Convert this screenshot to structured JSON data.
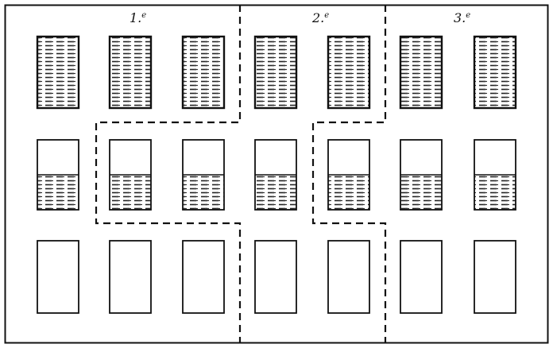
{
  "figure": {
    "zones": [
      {
        "id": "zone-1",
        "label": "1.",
        "superscript": "e"
      },
      {
        "id": "zone-2",
        "label": "2.",
        "superscript": "e"
      },
      {
        "id": "zone-3",
        "label": "3.",
        "superscript": "e"
      }
    ],
    "rows": [
      {
        "fill": "full",
        "count": 7
      },
      {
        "fill": "lower-half",
        "count": 7
      },
      {
        "fill": "empty",
        "count": 7
      }
    ],
    "colors": {
      "ink": "#111111",
      "hatch": "#222222",
      "paper": "#ffffff"
    }
  }
}
